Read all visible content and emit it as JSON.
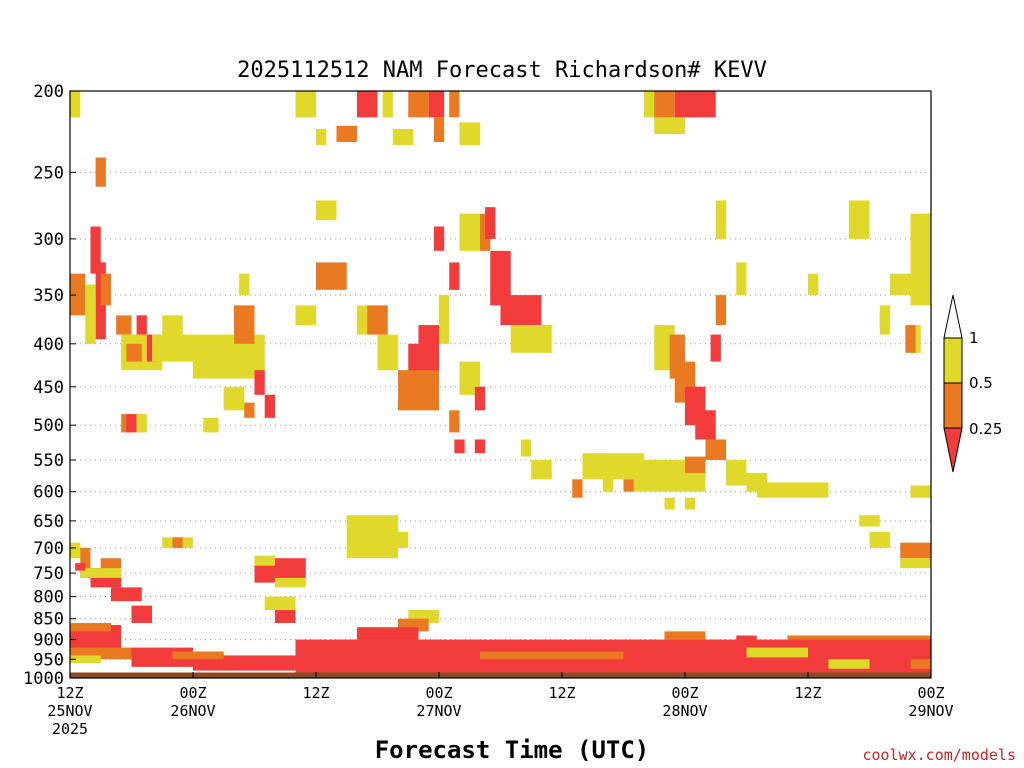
{
  "chart_data": {
    "type": "heatmap",
    "title": "2025112512 NAM Forecast Richardson# KEVV",
    "xlabel": "Forecast Time (UTC)",
    "ylabel": "",
    "y_scale": "log",
    "y_reversed": true,
    "ylim": [
      1000,
      200
    ],
    "y_ticks": [
      200,
      250,
      300,
      350,
      400,
      450,
      500,
      550,
      600,
      650,
      700,
      750,
      800,
      850,
      900,
      950,
      1000
    ],
    "x_ticks": [
      {
        "hour": 0,
        "line1": "12Z",
        "line2": "25NOV",
        "line3": "2025"
      },
      {
        "hour": 12,
        "line1": "00Z",
        "line2": "26NOV",
        "line3": ""
      },
      {
        "hour": 24,
        "line1": "12Z",
        "line2": "",
        "line3": ""
      },
      {
        "hour": 36,
        "line1": "00Z",
        "line2": "27NOV",
        "line3": ""
      },
      {
        "hour": 48,
        "line1": "12Z",
        "line2": "",
        "line3": ""
      },
      {
        "hour": 60,
        "line1": "00Z",
        "line2": "28NOV",
        "line3": ""
      },
      {
        "hour": 72,
        "line1": "12Z",
        "line2": "",
        "line3": ""
      },
      {
        "hour": 84,
        "line1": "00Z",
        "line2": "29NOV",
        "line3": ""
      }
    ],
    "xlim": [
      0,
      84
    ],
    "grid": "dotted horizontal lines at pressure ticks",
    "legend": {
      "placement": "right",
      "labels": [
        "1",
        "0.5",
        "0.25"
      ],
      "bins": [
        {
          "range": "0.5-1",
          "color": "#e0d82a"
        },
        {
          "range": "0.25-0.5",
          "color": "#ea7a22"
        },
        {
          "range": "<0.25",
          "color": "#f23b3b"
        }
      ]
    },
    "colors": {
      "high": "#e0d82a",
      "mid": "#ea7a22",
      "low": "#f23b3b",
      "ground": "#8b4a26"
    },
    "surface_pressure_hpa": 985,
    "cells": [
      {
        "t0": 0,
        "t1": 1,
        "p0": 200,
        "p1": 215,
        "c": "high"
      },
      {
        "t0": 2.5,
        "t1": 3.5,
        "p0": 320,
        "p1": 395,
        "c": "low"
      },
      {
        "t0": 2,
        "t1": 3,
        "p0": 290,
        "p1": 330,
        "c": "low"
      },
      {
        "t0": 0,
        "t1": 1.5,
        "p0": 330,
        "p1": 370,
        "c": "mid"
      },
      {
        "t0": 1.5,
        "t1": 2.5,
        "p0": 340,
        "p1": 400,
        "c": "high"
      },
      {
        "t0": 3,
        "t1": 4,
        "p0": 330,
        "p1": 360,
        "c": "mid"
      },
      {
        "t0": 2.5,
        "t1": 3.5,
        "p0": 240,
        "p1": 260,
        "c": "mid"
      },
      {
        "t0": 4.5,
        "t1": 6,
        "p0": 370,
        "p1": 390,
        "c": "mid"
      },
      {
        "t0": 5,
        "t1": 9,
        "p0": 390,
        "p1": 430,
        "c": "high"
      },
      {
        "t0": 5.5,
        "t1": 7,
        "p0": 400,
        "p1": 420,
        "c": "mid"
      },
      {
        "t0": 6.5,
        "t1": 7.5,
        "p0": 370,
        "p1": 390,
        "c": "low"
      },
      {
        "t0": 7.5,
        "t1": 8.5,
        "p0": 390,
        "p1": 420,
        "c": "low"
      },
      {
        "t0": 8,
        "t1": 12,
        "p0": 390,
        "p1": 420,
        "c": "high"
      },
      {
        "t0": 9,
        "t1": 11,
        "p0": 370,
        "p1": 400,
        "c": "high"
      },
      {
        "t0": 12,
        "t1": 19,
        "p0": 390,
        "p1": 440,
        "c": "high"
      },
      {
        "t0": 16,
        "t1": 18,
        "p0": 360,
        "p1": 400,
        "c": "mid"
      },
      {
        "t0": 16.5,
        "t1": 17.5,
        "p0": 330,
        "p1": 350,
        "c": "high"
      },
      {
        "t0": 15,
        "t1": 17,
        "p0": 450,
        "p1": 480,
        "c": "high"
      },
      {
        "t0": 18,
        "t1": 19,
        "p0": 430,
        "p1": 460,
        "c": "low"
      },
      {
        "t0": 17,
        "t1": 18,
        "p0": 470,
        "p1": 490,
        "c": "mid"
      },
      {
        "t0": 19,
        "t1": 20,
        "p0": 460,
        "p1": 490,
        "c": "low"
      },
      {
        "t0": 5,
        "t1": 6,
        "p0": 485,
        "p1": 510,
        "c": "mid"
      },
      {
        "t0": 5.5,
        "t1": 6.5,
        "p0": 485,
        "p1": 510,
        "c": "low"
      },
      {
        "t0": 6.5,
        "t1": 7.5,
        "p0": 485,
        "p1": 510,
        "c": "high"
      },
      {
        "t0": 13,
        "t1": 14.5,
        "p0": 490,
        "p1": 510,
        "c": "high"
      },
      {
        "t0": 22,
        "t1": 24,
        "p0": 200,
        "p1": 215,
        "c": "high"
      },
      {
        "t0": 28,
        "t1": 30,
        "p0": 200,
        "p1": 215,
        "c": "low"
      },
      {
        "t0": 30.5,
        "t1": 31.5,
        "p0": 200,
        "p1": 215,
        "c": "high"
      },
      {
        "t0": 33,
        "t1": 35,
        "p0": 200,
        "p1": 215,
        "c": "mid"
      },
      {
        "t0": 35,
        "t1": 36.5,
        "p0": 200,
        "p1": 215,
        "c": "low"
      },
      {
        "t0": 37,
        "t1": 38,
        "p0": 200,
        "p1": 215,
        "c": "mid"
      },
      {
        "t0": 26,
        "t1": 28,
        "p0": 220,
        "p1": 230,
        "c": "mid"
      },
      {
        "t0": 24,
        "t1": 25,
        "p0": 222,
        "p1": 232,
        "c": "high"
      },
      {
        "t0": 31.5,
        "t1": 33.5,
        "p0": 222,
        "p1": 232,
        "c": "high"
      },
      {
        "t0": 35.5,
        "t1": 36.5,
        "p0": 215,
        "p1": 230,
        "c": "mid"
      },
      {
        "t0": 38,
        "t1": 40,
        "p0": 218,
        "p1": 232,
        "c": "high"
      },
      {
        "t0": 24,
        "t1": 26,
        "p0": 270,
        "p1": 285,
        "c": "high"
      },
      {
        "t0": 24,
        "t1": 27,
        "p0": 320,
        "p1": 345,
        "c": "mid"
      },
      {
        "t0": 22,
        "t1": 24,
        "p0": 360,
        "p1": 380,
        "c": "high"
      },
      {
        "t0": 28,
        "t1": 30,
        "p0": 360,
        "p1": 390,
        "c": "high"
      },
      {
        "t0": 29,
        "t1": 31,
        "p0": 360,
        "p1": 390,
        "c": "mid"
      },
      {
        "t0": 30,
        "t1": 32,
        "p0": 390,
        "p1": 430,
        "c": "high"
      },
      {
        "t0": 33,
        "t1": 36,
        "p0": 400,
        "p1": 470,
        "c": "low"
      },
      {
        "t0": 32,
        "t1": 36,
        "p0": 430,
        "p1": 480,
        "c": "mid"
      },
      {
        "t0": 34,
        "t1": 36,
        "p0": 380,
        "p1": 420,
        "c": "low"
      },
      {
        "t0": 35.5,
        "t1": 36.5,
        "p0": 290,
        "p1": 310,
        "c": "low"
      },
      {
        "t0": 36,
        "t1": 37,
        "p0": 350,
        "p1": 400,
        "c": "high"
      },
      {
        "t0": 37,
        "t1": 38,
        "p0": 320,
        "p1": 345,
        "c": "low"
      },
      {
        "t0": 38,
        "t1": 40,
        "p0": 280,
        "p1": 310,
        "c": "high"
      },
      {
        "t0": 40,
        "t1": 41,
        "p0": 280,
        "p1": 310,
        "c": "mid"
      },
      {
        "t0": 40.5,
        "t1": 41.5,
        "p0": 275,
        "p1": 300,
        "c": "low"
      },
      {
        "t0": 41,
        "t1": 43,
        "p0": 310,
        "p1": 360,
        "c": "low"
      },
      {
        "t0": 42,
        "t1": 46,
        "p0": 350,
        "p1": 380,
        "c": "low"
      },
      {
        "t0": 43,
        "t1": 47,
        "p0": 380,
        "p1": 410,
        "c": "high"
      },
      {
        "t0": 38,
        "t1": 40,
        "p0": 420,
        "p1": 460,
        "c": "high"
      },
      {
        "t0": 39.5,
        "t1": 40.5,
        "p0": 450,
        "p1": 480,
        "c": "low"
      },
      {
        "t0": 37,
        "t1": 38,
        "p0": 480,
        "p1": 510,
        "c": "mid"
      },
      {
        "t0": 37.5,
        "t1": 38.5,
        "p0": 520,
        "p1": 540,
        "c": "low"
      },
      {
        "t0": 39.5,
        "t1": 40.5,
        "p0": 520,
        "p1": 540,
        "c": "low"
      },
      {
        "t0": 44,
        "t1": 45,
        "p0": 520,
        "p1": 545,
        "c": "high"
      },
      {
        "t0": 45,
        "t1": 47,
        "p0": 550,
        "p1": 580,
        "c": "high"
      },
      {
        "t0": 50,
        "t1": 56,
        "p0": 540,
        "p1": 580,
        "c": "high"
      },
      {
        "t0": 52,
        "t1": 53,
        "p0": 560,
        "p1": 600,
        "c": "high"
      },
      {
        "t0": 55,
        "t1": 62,
        "p0": 550,
        "p1": 600,
        "c": "high"
      },
      {
        "t0": 49,
        "t1": 50,
        "p0": 580,
        "p1": 610,
        "c": "mid"
      },
      {
        "t0": 54,
        "t1": 55,
        "p0": 580,
        "p1": 600,
        "c": "mid"
      },
      {
        "t0": 60,
        "t1": 62,
        "p0": 545,
        "p1": 570,
        "c": "mid"
      },
      {
        "t0": 58,
        "t1": 59,
        "p0": 610,
        "p1": 630,
        "c": "high"
      },
      {
        "t0": 60,
        "t1": 61,
        "p0": 610,
        "p1": 630,
        "c": "high"
      },
      {
        "t0": 56,
        "t1": 58,
        "p0": 200,
        "p1": 215,
        "c": "high"
      },
      {
        "t0": 57,
        "t1": 59,
        "p0": 200,
        "p1": 215,
        "c": "mid"
      },
      {
        "t0": 59,
        "t1": 63,
        "p0": 200,
        "p1": 215,
        "c": "low"
      },
      {
        "t0": 57,
        "t1": 60,
        "p0": 215,
        "p1": 225,
        "c": "high"
      },
      {
        "t0": 63,
        "t1": 64,
        "p0": 270,
        "p1": 300,
        "c": "high"
      },
      {
        "t0": 65,
        "t1": 66,
        "p0": 320,
        "p1": 350,
        "c": "high"
      },
      {
        "t0": 63,
        "t1": 64,
        "p0": 350,
        "p1": 380,
        "c": "mid"
      },
      {
        "t0": 62.5,
        "t1": 63.5,
        "p0": 390,
        "p1": 420,
        "c": "low"
      },
      {
        "t0": 57,
        "t1": 59,
        "p0": 380,
        "p1": 430,
        "c": "high"
      },
      {
        "t0": 58.5,
        "t1": 60,
        "p0": 390,
        "p1": 440,
        "c": "mid"
      },
      {
        "t0": 59,
        "t1": 61,
        "p0": 420,
        "p1": 470,
        "c": "mid"
      },
      {
        "t0": 60,
        "t1": 62,
        "p0": 450,
        "p1": 500,
        "c": "low"
      },
      {
        "t0": 61,
        "t1": 63,
        "p0": 480,
        "p1": 520,
        "c": "low"
      },
      {
        "t0": 62,
        "t1": 64,
        "p0": 520,
        "p1": 550,
        "c": "mid"
      },
      {
        "t0": 64,
        "t1": 66,
        "p0": 550,
        "p1": 590,
        "c": "high"
      },
      {
        "t0": 67,
        "t1": 74,
        "p0": 585,
        "p1": 610,
        "c": "high"
      },
      {
        "t0": 66,
        "t1": 68,
        "p0": 570,
        "p1": 600,
        "c": "high"
      },
      {
        "t0": 79,
        "t1": 80,
        "p0": 360,
        "p1": 390,
        "c": "high"
      },
      {
        "t0": 80,
        "t1": 82,
        "p0": 330,
        "p1": 350,
        "c": "high"
      },
      {
        "t0": 82,
        "t1": 83,
        "p0": 380,
        "p1": 410,
        "c": "high"
      },
      {
        "t0": 81.5,
        "t1": 82.5,
        "p0": 380,
        "p1": 410,
        "c": "mid"
      },
      {
        "t0": 82,
        "t1": 84,
        "p0": 280,
        "p1": 360,
        "c": "high"
      },
      {
        "t0": 76,
        "t1": 78,
        "p0": 270,
        "p1": 300,
        "c": "high"
      },
      {
        "t0": 72,
        "t1": 73,
        "p0": 330,
        "p1": 350,
        "c": "high"
      },
      {
        "t0": 82,
        "t1": 84,
        "p0": 590,
        "p1": 610,
        "c": "high"
      },
      {
        "t0": 77,
        "t1": 79,
        "p0": 640,
        "p1": 660,
        "c": "high"
      },
      {
        "t0": 78,
        "t1": 80,
        "p0": 670,
        "p1": 700,
        "c": "high"
      },
      {
        "t0": 81,
        "t1": 84,
        "p0": 690,
        "p1": 720,
        "c": "mid"
      },
      {
        "t0": 81,
        "t1": 84,
        "p0": 720,
        "p1": 740,
        "c": "high"
      },
      {
        "t0": 27,
        "t1": 32,
        "p0": 640,
        "p1": 720,
        "c": "high"
      },
      {
        "t0": 30,
        "t1": 33,
        "p0": 670,
        "p1": 700,
        "c": "high"
      },
      {
        "t0": 9,
        "t1": 12,
        "p0": 680,
        "p1": 700,
        "c": "high"
      },
      {
        "t0": 10,
        "t1": 11,
        "p0": 680,
        "p1": 700,
        "c": "mid"
      },
      {
        "t0": 18,
        "t1": 23,
        "p0": 720,
        "p1": 770,
        "c": "low"
      },
      {
        "t0": 18,
        "t1": 20,
        "p0": 715,
        "p1": 735,
        "c": "high"
      },
      {
        "t0": 20,
        "t1": 23,
        "p0": 760,
        "p1": 780,
        "c": "high"
      },
      {
        "t0": 2,
        "t1": 5,
        "p0": 740,
        "p1": 780,
        "c": "low"
      },
      {
        "t0": 3,
        "t1": 5,
        "p0": 720,
        "p1": 740,
        "c": "mid"
      },
      {
        "t0": 4,
        "t1": 7,
        "p0": 780,
        "p1": 810,
        "c": "low"
      },
      {
        "t0": 6,
        "t1": 8,
        "p0": 820,
        "p1": 860,
        "c": "low"
      },
      {
        "t0": 0,
        "t1": 1,
        "p0": 690,
        "p1": 720,
        "c": "high"
      },
      {
        "t0": 1,
        "t1": 2,
        "p0": 700,
        "p1": 760,
        "c": "mid"
      },
      {
        "t0": 1,
        "t1": 5,
        "p0": 740,
        "p1": 760,
        "c": "high"
      },
      {
        "t0": 0.5,
        "t1": 1.5,
        "p0": 730,
        "p1": 745,
        "c": "low"
      },
      {
        "t0": 19,
        "t1": 22,
        "p0": 800,
        "p1": 830,
        "c": "high"
      },
      {
        "t0": 20,
        "t1": 22,
        "p0": 830,
        "p1": 860,
        "c": "low"
      },
      {
        "t0": 33,
        "t1": 36,
        "p0": 830,
        "p1": 860,
        "c": "high"
      },
      {
        "t0": 32,
        "t1": 35,
        "p0": 850,
        "p1": 880,
        "c": "mid"
      },
      {
        "t0": 28,
        "t1": 34,
        "p0": 870,
        "p1": 900,
        "c": "low"
      },
      {
        "t0": 58,
        "t1": 62,
        "p0": 880,
        "p1": 900,
        "c": "mid"
      },
      {
        "t0": 65,
        "t1": 67,
        "p0": 890,
        "p1": 910,
        "c": "low"
      },
      {
        "t0": 70,
        "t1": 84,
        "p0": 890,
        "p1": 910,
        "c": "mid"
      },
      {
        "t0": 0,
        "t1": 5,
        "p0": 865,
        "p1": 940,
        "c": "low"
      },
      {
        "t0": 0,
        "t1": 4,
        "p0": 860,
        "p1": 880,
        "c": "mid"
      },
      {
        "t0": 0,
        "t1": 6,
        "p0": 920,
        "p1": 950,
        "c": "mid"
      },
      {
        "t0": 0,
        "t1": 3,
        "p0": 940,
        "p1": 960,
        "c": "high"
      },
      {
        "t0": 6,
        "t1": 12,
        "p0": 920,
        "p1": 970,
        "c": "low"
      },
      {
        "t0": 12,
        "t1": 24,
        "p0": 940,
        "p1": 980,
        "c": "low"
      },
      {
        "t0": 22,
        "t1": 84,
        "p0": 900,
        "p1": 985,
        "c": "low"
      },
      {
        "t0": 10,
        "t1": 15,
        "p0": 930,
        "p1": 950,
        "c": "mid"
      },
      {
        "t0": 40,
        "t1": 54,
        "p0": 930,
        "p1": 950,
        "c": "mid"
      },
      {
        "t0": 66,
        "t1": 72,
        "p0": 920,
        "p1": 945,
        "c": "high"
      },
      {
        "t0": 74,
        "t1": 78,
        "p0": 950,
        "p1": 975,
        "c": "high"
      },
      {
        "t0": 82,
        "t1": 84,
        "p0": 950,
        "p1": 975,
        "c": "mid"
      }
    ]
  },
  "credit": "coolwx.com/models"
}
